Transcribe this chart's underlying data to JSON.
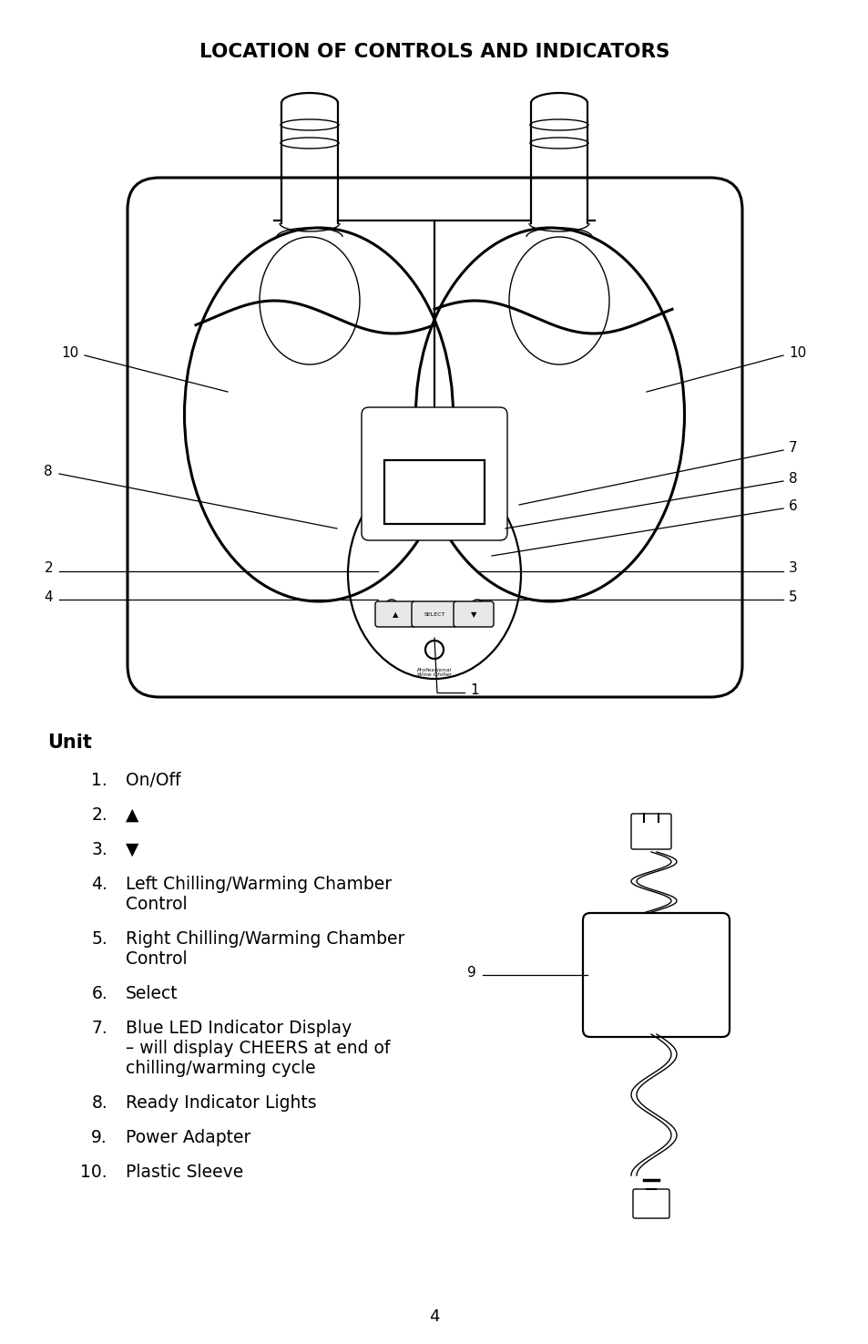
{
  "title": "LOCATION OF CONTROLS AND INDICATORS",
  "title_fontsize": 15.5,
  "background_color": "#ffffff",
  "text_color": "#000000",
  "unit_label": "Unit",
  "label_fontsize": 11,
  "page_number": "4",
  "items": [
    [
      "1.",
      "On/Off"
    ],
    [
      "2.",
      "▲"
    ],
    [
      "3.",
      "▼"
    ],
    [
      "4.",
      "Left Chilling/Warming Chamber\nControl"
    ],
    [
      "5.",
      "Right Chilling/Warming Chamber\nControl"
    ],
    [
      "6.",
      "Select"
    ],
    [
      "7.",
      "Blue LED Indicator Display\n– will display CHEERS at end of\nchilling/warming cycle"
    ],
    [
      "8.",
      "Ready Indicator Lights"
    ],
    [
      "9.",
      "Power Adapter"
    ],
    [
      "10.",
      "Plastic Sleeve"
    ]
  ]
}
